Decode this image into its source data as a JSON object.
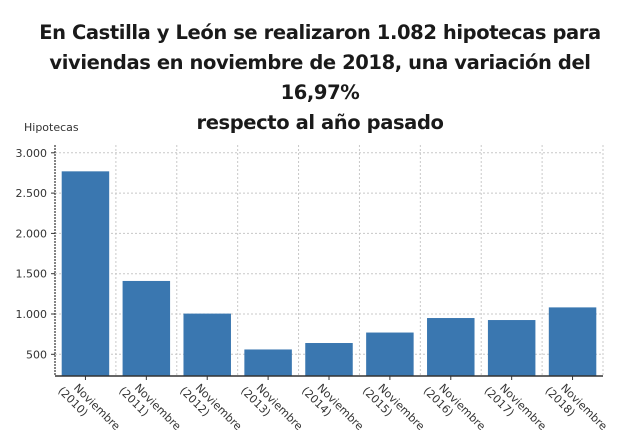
{
  "title": "En Castilla y León se realizaron 1.082 hipotecas para viviendas en noviembre de 2018, una variación del 16,97% respecto al año pasado",
  "title_lines": [
    "En Castilla y León se realizaron 1.082 hipotecas para",
    "viviendas en noviembre de 2018, una variación del 16,97%",
    "respecto al año pasado"
  ],
  "colors": {
    "bar": "#3a77b0",
    "grid": "#c8c8c8",
    "axis": "#333333",
    "text": "#1a1a1a"
  },
  "chart_data": {
    "type": "bar",
    "title": "En Castilla y León se realizaron 1.082 hipotecas para viviendas en noviembre de 2018, una variación del 16,97% respecto al año pasado",
    "xlabel": "",
    "ylabel": "Hipotecas",
    "categories": [
      "Noviembre (2010)",
      "Noviembre (2011)",
      "Noviembre (2012)",
      "Noviembre (2013)",
      "Noviembre (2014)",
      "Noviembre (2015)",
      "Noviembre (2016)",
      "Noviembre (2017)",
      "Noviembre (2018)"
    ],
    "category_lines": [
      [
        "Noviembre",
        "(2010)"
      ],
      [
        "Noviembre",
        "(2011)"
      ],
      [
        "Noviembre",
        "(2012)"
      ],
      [
        "Noviembre",
        "(2013)"
      ],
      [
        "Noviembre",
        "(2014)"
      ],
      [
        "Noviembre",
        "(2015)"
      ],
      [
        "Noviembre",
        "(2016)"
      ],
      [
        "Noviembre",
        "(2017)"
      ],
      [
        "Noviembre",
        "(2018)"
      ]
    ],
    "values": [
      2770,
      1410,
      1005,
      560,
      640,
      770,
      950,
      925,
      1082
    ],
    "yticks": [
      500,
      1000,
      1500,
      2000,
      2500,
      3000
    ],
    "ytick_labels": [
      "500",
      "1.000",
      "1.500",
      "2.000",
      "2.500",
      "3.000"
    ],
    "ylim": [
      230,
      3000
    ],
    "grid": true,
    "legend": null
  }
}
